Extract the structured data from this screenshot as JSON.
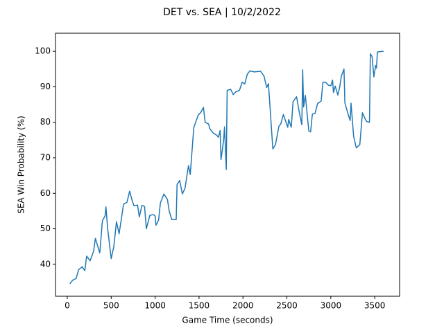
{
  "chart_data": {
    "type": "line",
    "title": "DET vs. SEA | 10/2/2022",
    "x_label": "Game Time (seconds)",
    "y_label": "SEA Win Probability (%)",
    "x": [
      30,
      60,
      100,
      130,
      170,
      200,
      220,
      260,
      300,
      320,
      370,
      400,
      430,
      440,
      460,
      500,
      530,
      560,
      590,
      620,
      640,
      680,
      710,
      740,
      760,
      800,
      820,
      850,
      880,
      900,
      940,
      980,
      1000,
      1010,
      1040,
      1060,
      1100,
      1140,
      1160,
      1190,
      1240,
      1250,
      1280,
      1310,
      1340,
      1380,
      1400,
      1440,
      1490,
      1520,
      1550,
      1570,
      1610,
      1620,
      1660,
      1700,
      1720,
      1740,
      1750,
      1780,
      1790,
      1810,
      1820,
      1860,
      1890,
      1920,
      1960,
      1990,
      2020,
      2050,
      2080,
      2130,
      2200,
      2240,
      2270,
      2290,
      2340,
      2370,
      2410,
      2430,
      2460,
      2490,
      2510,
      2520,
      2550,
      2570,
      2610,
      2640,
      2670,
      2680,
      2690,
      2710,
      2730,
      2750,
      2770,
      2790,
      2820,
      2850,
      2890,
      2910,
      2940,
      2970,
      3000,
      3020,
      3030,
      3050,
      3080,
      3100,
      3120,
      3150,
      3160,
      3200,
      3220,
      3230,
      3260,
      3290,
      3330,
      3360,
      3390,
      3410,
      3440,
      3450,
      3470,
      3490,
      3510,
      3520,
      3530,
      3560,
      3600
    ],
    "series": [
      {
        "name": "SEA",
        "color": "#1f77b4",
        "values": [
          34.5,
          35.5,
          36,
          38.5,
          39.3,
          38.2,
          42.3,
          41,
          43.7,
          47.3,
          43.2,
          52.3,
          53.6,
          56.2,
          50,
          41.6,
          45,
          52,
          48.6,
          53.5,
          56.9,
          57.5,
          60.6,
          57.8,
          56.5,
          56.7,
          53.3,
          56.6,
          56.3,
          50,
          53.8,
          54,
          53.6,
          51,
          52.5,
          57.3,
          59.8,
          58.3,
          55,
          52.6,
          52.6,
          62.5,
          63.6,
          59.8,
          61.4,
          67.8,
          65.3,
          78.5,
          82,
          82.8,
          84.2,
          80,
          79.5,
          78.3,
          77,
          76.4,
          75.8,
          77.7,
          69.5,
          75,
          78.7,
          66.7,
          89,
          89.3,
          87.8,
          88.6,
          89,
          91.3,
          90.8,
          93.6,
          94.5,
          94.2,
          94.4,
          93,
          89.8,
          90.9,
          72.5,
          73.7,
          79,
          79.5,
          82.2,
          80,
          78.6,
          80.8,
          78.6,
          85.8,
          87.2,
          83,
          79.3,
          94.8,
          84.3,
          87.6,
          82.5,
          77.5,
          77.3,
          82.3,
          82.5,
          85.3,
          86,
          91.3,
          91.3,
          90.5,
          90.3,
          91.9,
          88.4,
          90.2,
          87.7,
          89.8,
          93,
          95,
          85.5,
          82,
          80.5,
          85.4,
          76,
          72.8,
          73.7,
          82.7,
          81,
          80.2,
          80,
          99.3,
          98.5,
          92.8,
          96,
          95.3,
          99.8,
          99.9,
          100
        ]
      }
    ],
    "xlim": [
      -134,
      3783
    ],
    "ylim": [
      31,
      105.1
    ],
    "xticks": [
      0,
      500,
      1000,
      1500,
      2000,
      2500,
      3000,
      3500
    ],
    "yticks": [
      40,
      50,
      60,
      70,
      80,
      90,
      100
    ]
  }
}
